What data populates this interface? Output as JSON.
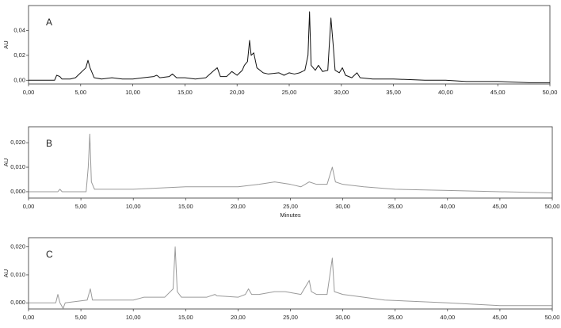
{
  "chart_data": [
    {
      "type": "line",
      "panel_label": "A",
      "ylabel": "AU",
      "xlim": [
        0,
        50
      ],
      "ylim": [
        -0.003,
        0.06
      ],
      "xticks": [
        {
          "value": 0,
          "label": "0,00"
        },
        {
          "value": 5,
          "label": "5,00"
        },
        {
          "value": 10,
          "label": "10,00"
        },
        {
          "value": 15,
          "label": "15,00"
        },
        {
          "value": 20,
          "label": "20,00"
        },
        {
          "value": 25,
          "label": "25,00"
        },
        {
          "value": 30,
          "label": "30,00"
        },
        {
          "value": 35,
          "label": "35,00"
        },
        {
          "value": 40,
          "label": "40,00"
        },
        {
          "value": 45,
          "label": "45,00"
        },
        {
          "value": 50,
          "label": "50,00"
        }
      ],
      "yticks": [
        {
          "value": 0,
          "label": "0,00"
        },
        {
          "value": 0.02,
          "label": "0,02"
        },
        {
          "value": 0.04,
          "label": "0,04"
        }
      ],
      "x": [
        0,
        2.5,
        2.7,
        3.0,
        3.2,
        4,
        4.5,
        5.5,
        5.7,
        5.9,
        6.3,
        7,
        8,
        9,
        10,
        11,
        12,
        12.3,
        12.6,
        13.5,
        13.8,
        14.2,
        15,
        16,
        17,
        17.8,
        18.1,
        18.4,
        19,
        19.5,
        20,
        20.5,
        20.7,
        21,
        21.2,
        21.35,
        21.6,
        21.9,
        22.5,
        23,
        24,
        24.5,
        25,
        25.5,
        26,
        26.5,
        26.8,
        26.95,
        27.1,
        27.5,
        27.8,
        28.2,
        28.7,
        29.0,
        29.2,
        29.4,
        29.8,
        30.1,
        30.4,
        31,
        31.5,
        31.8,
        33,
        35,
        38,
        40,
        42,
        45,
        48,
        50
      ],
      "series": [
        {
          "color": "#111111",
          "values": [
            0,
            0,
            0.004,
            0.003,
            0.001,
            0.001,
            0.002,
            0.01,
            0.016,
            0.01,
            0.002,
            0.001,
            0.002,
            0.001,
            0.001,
            0.002,
            0.003,
            0.004,
            0.002,
            0.003,
            0.005,
            0.002,
            0.002,
            0.001,
            0.002,
            0.008,
            0.01,
            0.003,
            0.003,
            0.007,
            0.004,
            0.008,
            0.012,
            0.015,
            0.032,
            0.02,
            0.022,
            0.01,
            0.006,
            0.005,
            0.006,
            0.004,
            0.006,
            0.005,
            0.006,
            0.008,
            0.02,
            0.055,
            0.012,
            0.008,
            0.012,
            0.007,
            0.008,
            0.05,
            0.03,
            0.008,
            0.006,
            0.01,
            0.004,
            0.002,
            0.006,
            0.002,
            0.001,
            0.001,
            0,
            0,
            -0.001,
            -0.001,
            -0.002,
            -0.002
          ]
        }
      ]
    },
    {
      "type": "line",
      "panel_label": "B",
      "ylabel": "AU",
      "xlabel": "Minutes",
      "xlim": [
        0,
        50
      ],
      "ylim": [
        -0.0026,
        0.0265
      ],
      "xticks": [
        {
          "value": 0,
          "label": "0,00"
        },
        {
          "value": 5,
          "label": "5,00"
        },
        {
          "value": 10,
          "label": "10,00"
        },
        {
          "value": 15,
          "label": "15,00"
        },
        {
          "value": 20,
          "label": "20,00"
        },
        {
          "value": 25,
          "label": "25,00"
        },
        {
          "value": 30,
          "label": "30,00"
        },
        {
          "value": 35,
          "label": "35,00"
        },
        {
          "value": 40,
          "label": "40,00"
        },
        {
          "value": 45,
          "label": "45,00"
        },
        {
          "value": 50,
          "label": "50,00"
        }
      ],
      "yticks": [
        {
          "value": 0,
          "label": "0,000"
        },
        {
          "value": 0.01,
          "label": "0,010"
        },
        {
          "value": 0.02,
          "label": "0,020"
        }
      ],
      "x": [
        0,
        2.8,
        3,
        3.2,
        5.5,
        5.7,
        5.85,
        6.0,
        6.3,
        10,
        15,
        20,
        22,
        23.5,
        25,
        26,
        26.8,
        27.5,
        28.5,
        29,
        29.3,
        30,
        32,
        35,
        40,
        45,
        50
      ],
      "series": [
        {
          "color": "#9a9a9a",
          "values": [
            0,
            0,
            0.001,
            0,
            0,
            0.01,
            0.0235,
            0.004,
            0.001,
            0.001,
            0.002,
            0.002,
            0.003,
            0.004,
            0.003,
            0.002,
            0.004,
            0.003,
            0.003,
            0.01,
            0.004,
            0.003,
            0.002,
            0.001,
            0.0005,
            0,
            -0.0005
          ]
        }
      ]
    },
    {
      "type": "line",
      "panel_label": "C",
      "ylabel": "AU",
      "xlim": [
        0,
        50
      ],
      "ylim": [
        -0.0022,
        0.0233
      ],
      "xticks": [
        {
          "value": 0,
          "label": "0,00"
        },
        {
          "value": 5,
          "label": "5,00"
        },
        {
          "value": 10,
          "label": "10,00"
        },
        {
          "value": 15,
          "label": "15,00"
        },
        {
          "value": 20,
          "label": "20,00"
        },
        {
          "value": 25,
          "label": "25,00"
        },
        {
          "value": 30,
          "label": "30,00"
        },
        {
          "value": 35,
          "label": "35,00"
        },
        {
          "value": 40,
          "label": "40,00"
        },
        {
          "value": 45,
          "label": "45,00"
        },
        {
          "value": 50,
          "label": "50,00"
        }
      ],
      "yticks": [
        {
          "value": 0,
          "label": "0,000"
        },
        {
          "value": 0.01,
          "label": "0,010"
        },
        {
          "value": 0.02,
          "label": "0,020"
        }
      ],
      "x": [
        0,
        2.6,
        2.8,
        3.0,
        3.3,
        3.5,
        5.6,
        5.9,
        6.1,
        10,
        11,
        13,
        13.8,
        14.0,
        14.2,
        14.6,
        17,
        17.8,
        18,
        20,
        20.7,
        21,
        21.3,
        22,
        23.5,
        24.5,
        26,
        26.8,
        27.0,
        27.5,
        28.5,
        29.0,
        29.2,
        30,
        32,
        34,
        40,
        45,
        50
      ],
      "series": [
        {
          "color": "#9a9a9a",
          "values": [
            0,
            0,
            0.003,
            0,
            -0.002,
            0,
            0.001,
            0.005,
            0.001,
            0.001,
            0.002,
            0.002,
            0.005,
            0.02,
            0.004,
            0.002,
            0.002,
            0.003,
            0.0025,
            0.002,
            0.003,
            0.005,
            0.003,
            0.003,
            0.004,
            0.004,
            0.003,
            0.008,
            0.004,
            0.003,
            0.003,
            0.016,
            0.004,
            0.003,
            0.002,
            0.001,
            0,
            -0.001,
            -0.001
          ]
        }
      ]
    }
  ]
}
